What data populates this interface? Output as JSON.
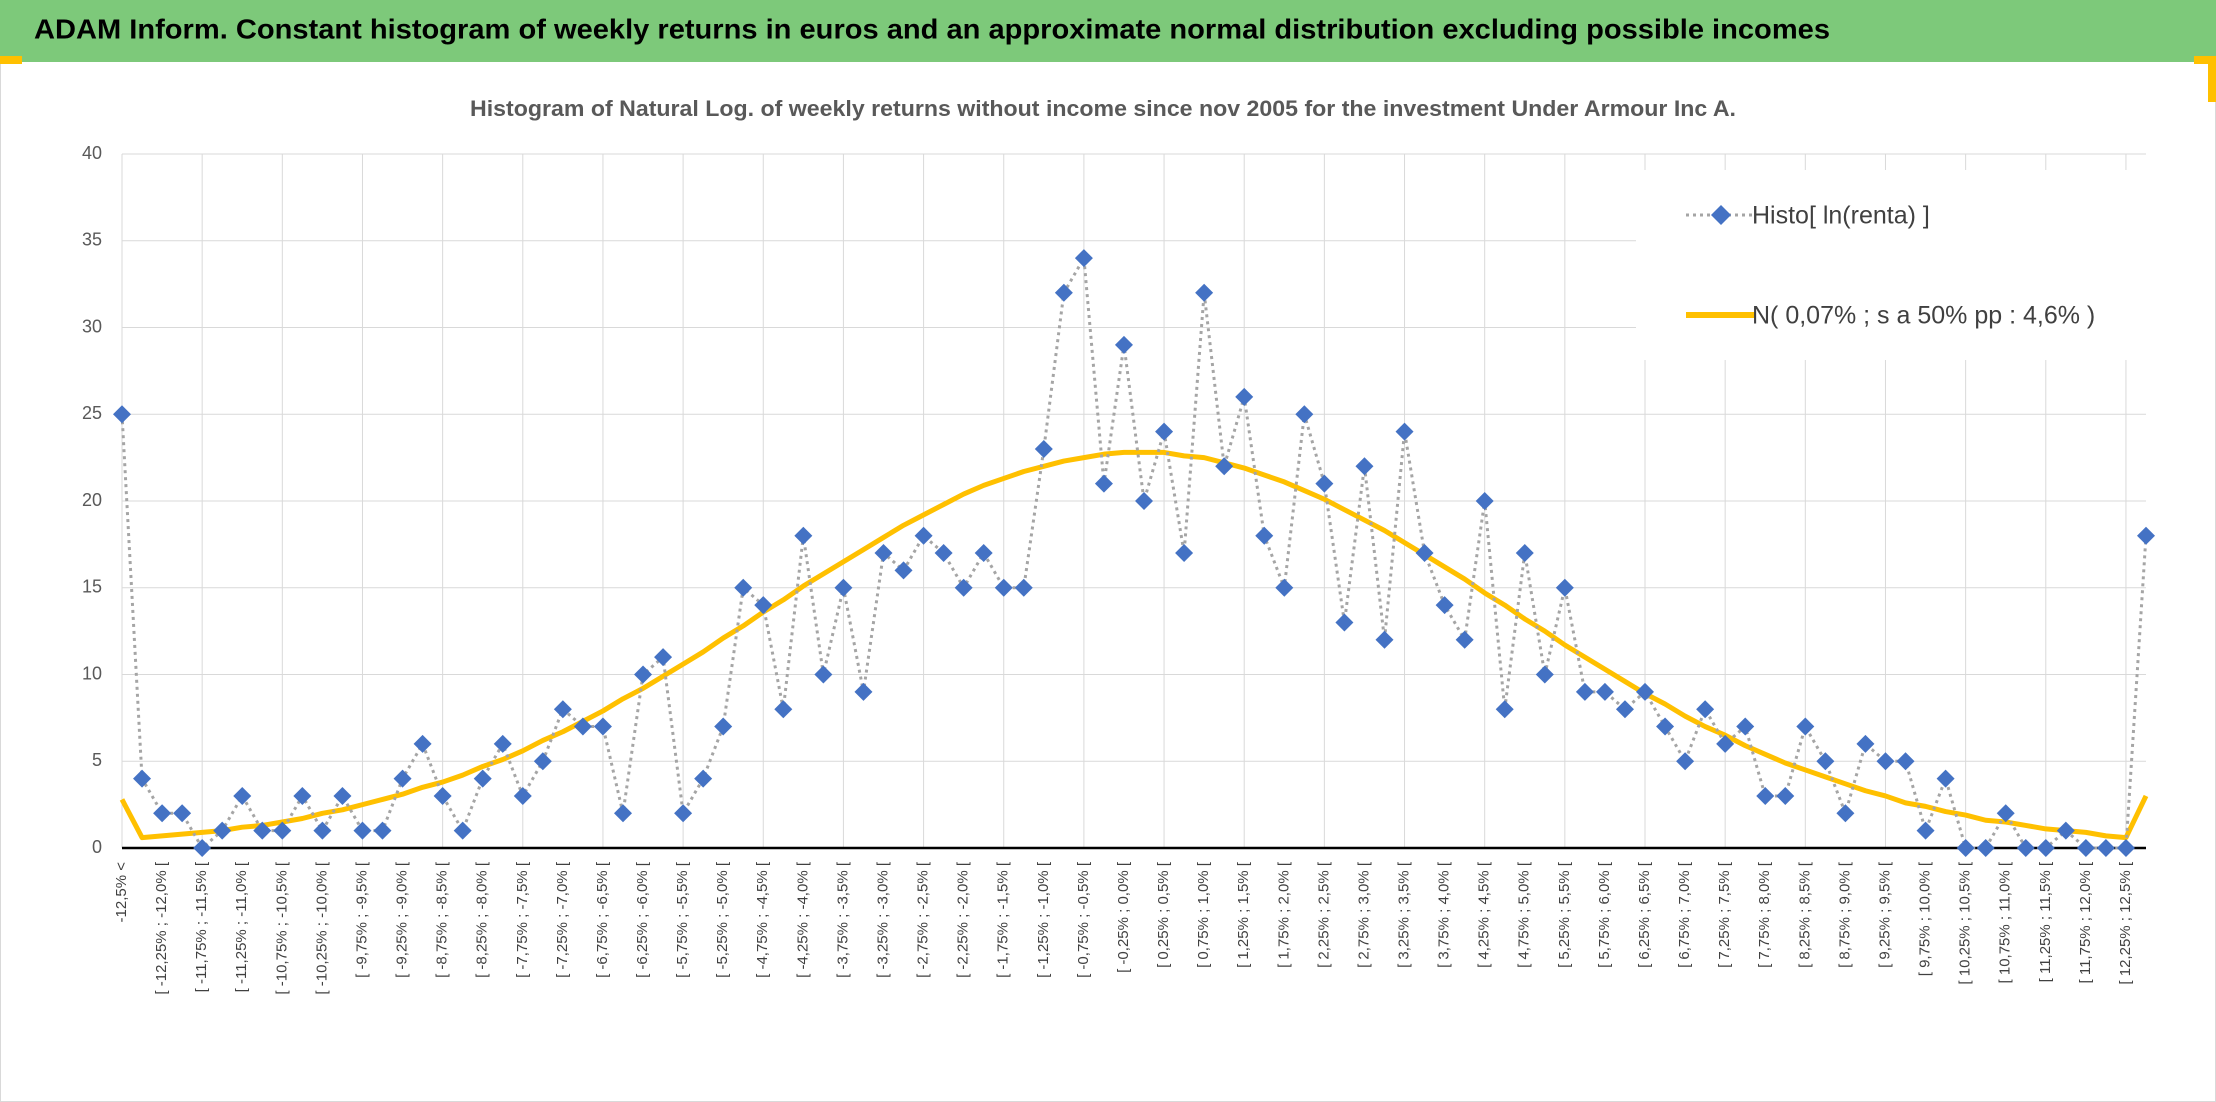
{
  "header": {
    "title": "ADAM Inform. Constant histogram of weekly returns in euros and an approximate normal distribution excluding possible incomes"
  },
  "chart_data": {
    "type": "line",
    "title": "Histogram of Natural Log. of weekly returns without income since nov 2005 for the investment Under Armour Inc A.",
    "categories": [
      "-12,5% <",
      null,
      "[ -12,25% ; -12,0% [",
      null,
      "[ -11,75% ; -11,5% [",
      null,
      "[ -11,25% ; -11,0% [",
      null,
      "[ -10,75% ; -10,5% [",
      null,
      "[ -10,25% ; -10,0% [",
      null,
      "[ -9,75% ; -9,5% [",
      null,
      "[ -9,25% ; -9,0% [",
      null,
      "[ -8,75% ; -8,5% [",
      null,
      "[ -8,25% ; -8,0% [",
      null,
      "[ -7,75% ; -7,5% [",
      null,
      "[ -7,25% ; -7,0% [",
      null,
      "[ -6,75% ; -6,5% [",
      null,
      "[ -6,25% ; -6,0% [",
      null,
      "[ -5,75% ; -5,5% [",
      null,
      "[ -5,25% ; -5,0% [",
      null,
      "[ -4,75% ; -4,5% [",
      null,
      "[ -4,25% ; -4,0% [",
      null,
      "[ -3,75% ; -3,5% [",
      null,
      "[ -3,25% ; -3,0% [",
      null,
      "[ -2,75% ; -2,5% [",
      null,
      "[ -2,25% ; -2,0% [",
      null,
      "[ -1,75% ; -1,5% [",
      null,
      "[ -1,25% ; -1,0% [",
      null,
      "[ -0,75% ; -0,5% [",
      null,
      "[ -0,25% ; 0,0% [",
      null,
      "[ 0,25% ; 0,5% [",
      null,
      "[ 0,75% ; 1,0% [",
      null,
      "[ 1,25% ; 1,5% [",
      null,
      "[ 1,75% ; 2,0% [",
      null,
      "[ 2,25% ; 2,5% [",
      null,
      "[ 2,75% ; 3,0% [",
      null,
      "[ 3,25% ; 3,5% [",
      null,
      "[ 3,75% ; 4,0% [",
      null,
      "[ 4,25% ; 4,5% [",
      null,
      "[ 4,75% ; 5,0% [",
      null,
      "[ 5,25% ; 5,5% [",
      null,
      "[ 5,75% ; 6,0% [",
      null,
      "[ 6,25% ; 6,5% [",
      null,
      "[ 6,75% ; 7,0% [",
      null,
      "[ 7,25% ; 7,5% [",
      null,
      "[ 7,75% ; 8,0% [",
      null,
      "[ 8,25% ; 8,5% [",
      null,
      "[ 8,75% ; 9,0% [",
      null,
      "[ 9,25% ; 9,5% [",
      null,
      "[ 9,75% ; 10,0% [",
      null,
      "[ 10,25% ; 10,5% [",
      null,
      "[ 10,75% ; 11,0% [",
      null,
      "[ 11,25% ; 11,5% [",
      null,
      "[ 11,75% ; 12,0% [",
      null,
      "[ 12,25% ; 12,5% [",
      null
    ],
    "series": [
      {
        "name": "Histo[ ln(renta) ]",
        "color": "#4472c4",
        "line_color": "#a5a5a5",
        "line_style": "dotted",
        "marker": "diamond",
        "values": [
          25,
          4,
          2,
          2,
          0,
          1,
          3,
          1,
          1,
          3,
          1,
          3,
          1,
          1,
          4,
          6,
          3,
          1,
          4,
          6,
          3,
          5,
          8,
          7,
          7,
          2,
          10,
          11,
          2,
          4,
          7,
          15,
          14,
          8,
          18,
          10,
          15,
          9,
          17,
          16,
          18,
          17,
          15,
          17,
          15,
          15,
          23,
          32,
          34,
          21,
          29,
          20,
          24,
          17,
          32,
          22,
          26,
          18,
          15,
          25,
          21,
          13,
          22,
          12,
          24,
          17,
          14,
          12,
          20,
          8,
          17,
          10,
          15,
          9,
          9,
          8,
          9,
          7,
          5,
          8,
          6,
          7,
          3,
          3,
          7,
          5,
          2,
          6,
          5,
          5,
          1,
          4,
          0,
          0,
          2,
          0,
          0,
          1,
          0,
          0,
          0,
          18
        ]
      },
      {
        "name": "N( 0,07% ; s a 50% pp : 4,6% )",
        "color": "#ffc000",
        "line_style": "solid",
        "marker": "none",
        "values": [
          2.8,
          0.6,
          0.7,
          0.8,
          0.9,
          1.0,
          1.2,
          1.3,
          1.5,
          1.7,
          2.0,
          2.2,
          2.5,
          2.8,
          3.1,
          3.5,
          3.8,
          4.2,
          4.7,
          5.1,
          5.6,
          6.2,
          6.7,
          7.3,
          7.9,
          8.6,
          9.2,
          9.9,
          10.6,
          11.3,
          12.1,
          12.8,
          13.6,
          14.3,
          15.1,
          15.8,
          16.5,
          17.2,
          17.9,
          18.6,
          19.2,
          19.8,
          20.4,
          20.9,
          21.3,
          21.7,
          22.0,
          22.3,
          22.5,
          22.7,
          22.8,
          22.8,
          22.8,
          22.6,
          22.5,
          22.2,
          21.9,
          21.5,
          21.1,
          20.6,
          20.1,
          19.5,
          18.9,
          18.3,
          17.6,
          16.9,
          16.2,
          15.5,
          14.7,
          14.0,
          13.2,
          12.5,
          11.7,
          11.0,
          10.3,
          9.6,
          8.9,
          8.3,
          7.6,
          7.0,
          6.5,
          5.9,
          5.4,
          4.9,
          4.5,
          4.1,
          3.7,
          3.3,
          3.0,
          2.6,
          2.4,
          2.1,
          1.9,
          1.6,
          1.5,
          1.3,
          1.1,
          1.0,
          0.9,
          0.7,
          0.6,
          3.0
        ]
      }
    ],
    "ylim": [
      0,
      40
    ],
    "yticks": [
      0,
      5,
      10,
      15,
      20,
      25,
      30,
      35,
      40
    ],
    "grid": true,
    "legend": "upper right"
  }
}
